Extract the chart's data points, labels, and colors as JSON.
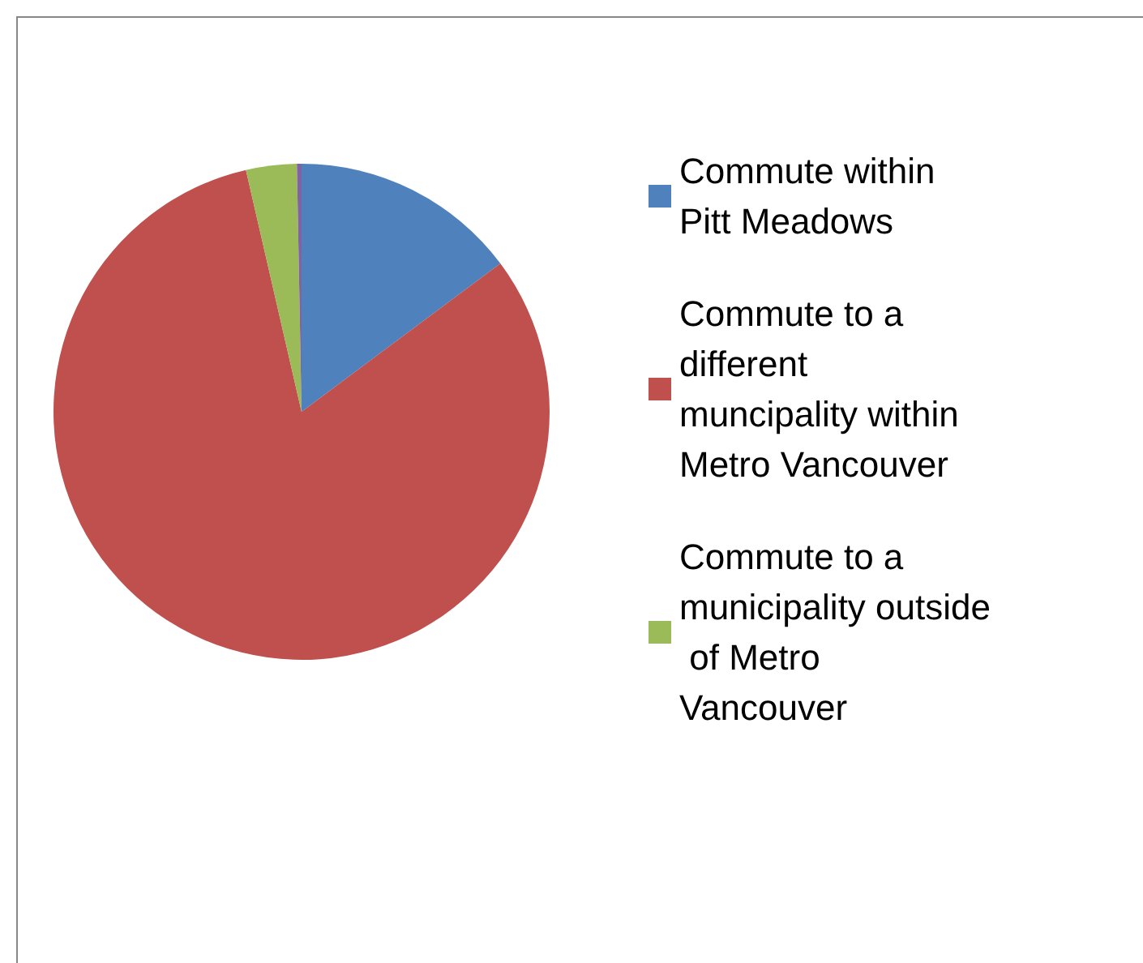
{
  "chart_data": {
    "type": "pie",
    "categories": [
      "Commute within Pitt Meadows",
      "Commute to a different muncipality within Metro Vancouver",
      "Commute to a municipality outside of Metro Vancouver",
      null
    ],
    "values": [
      14.8,
      81.6,
      3.3,
      0.3
    ],
    "colors": [
      "#4f81bd",
      "#c0504d",
      "#9bbb59",
      "#8064a2"
    ],
    "legend": "right"
  }
}
